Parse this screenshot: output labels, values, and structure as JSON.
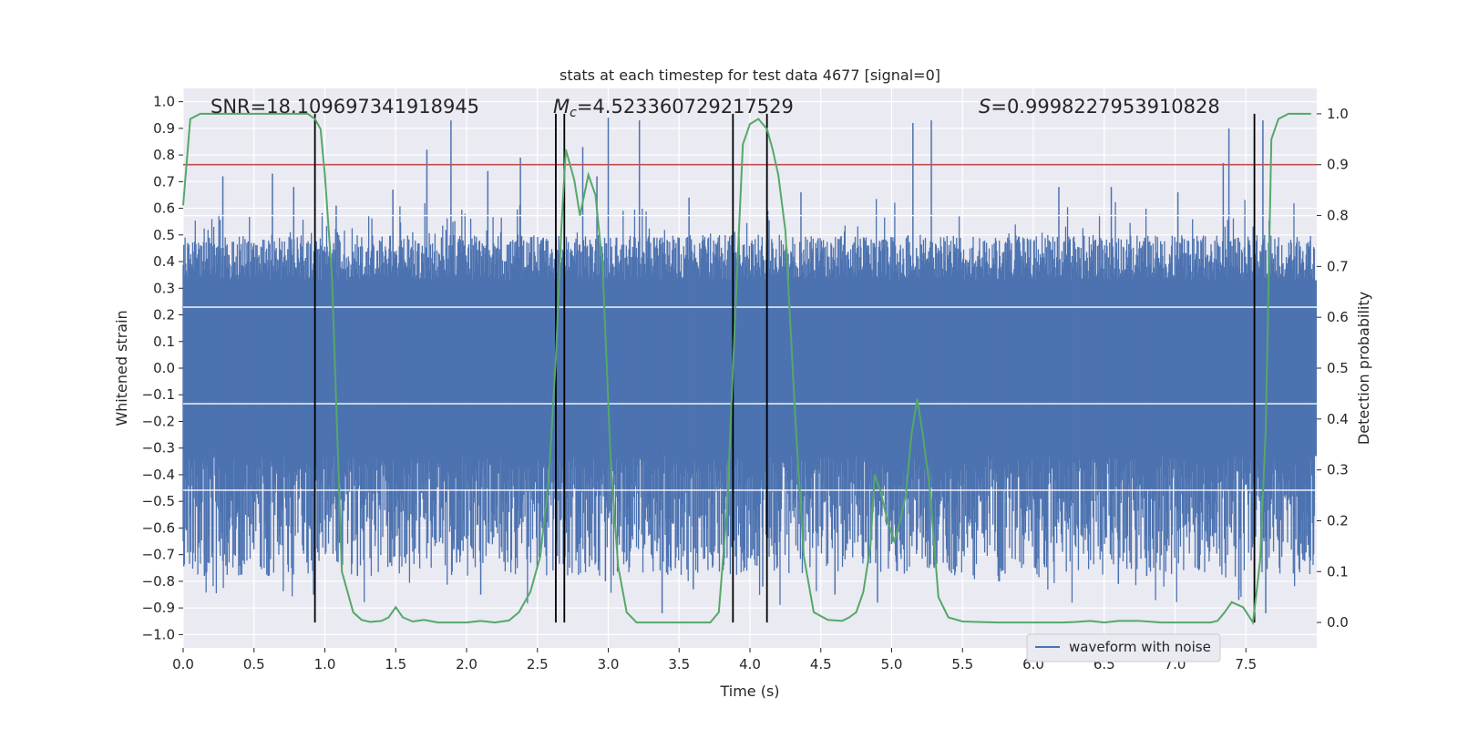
{
  "chart_data": {
    "type": "line",
    "title": "stats at each timestep for test data 4677 [signal=0]",
    "xlabel": "Time (s)",
    "ylabel_left": "Whitened strain",
    "ylabel_right": "Detection probability",
    "xlim": [
      0.0,
      8.0
    ],
    "ylim_left": [
      -1.05,
      1.05
    ],
    "ylim_right": [
      -0.05,
      1.05
    ],
    "xticks": [
      "0.0",
      "0.5",
      "1.0",
      "1.5",
      "2.0",
      "2.5",
      "3.0",
      "3.5",
      "4.0",
      "4.5",
      "5.0",
      "5.5",
      "6.0",
      "6.5",
      "7.0",
      "7.5"
    ],
    "yticks_left": [
      "-1.0",
      "-0.9",
      "-0.8",
      "-0.7",
      "-0.6",
      "-0.5",
      "-0.4",
      "-0.3",
      "-0.2",
      "-0.1",
      "0.0",
      "0.1",
      "0.2",
      "0.3",
      "0.4",
      "0.5",
      "0.6",
      "0.7",
      "0.8",
      "0.9",
      "1.0"
    ],
    "yticks_right": [
      "0.0",
      "0.1",
      "0.2",
      "0.3",
      "0.4",
      "0.5",
      "0.6",
      "0.7",
      "0.8",
      "0.9",
      "1.0"
    ],
    "grid": true,
    "legend_position": "lower right",
    "legend": [
      "waveform with noise"
    ],
    "annotations": {
      "snr": "SNR=18.109697341918945",
      "mc_sym": "M",
      "mc_sub": "c",
      "mc_val": "=4.523360729217529",
      "s_sym": "S",
      "s_val": "=0.9998227953910828"
    },
    "colors": {
      "waveform": "#4c72b0",
      "probability": "#55a868",
      "threshold": "#c44e52",
      "markers": "#000000",
      "axes_bg": "#eaeaf2",
      "grid": "#ffffff"
    },
    "series": [
      {
        "name": "waveform with noise",
        "axis": "left",
        "color": "#4c72b0",
        "envelope": {
          "core_range": [
            -0.33,
            0.33
          ],
          "typical_upper": 0.5,
          "typical_lower": -0.45,
          "spike_max": [
            [
              0.28,
              0.72
            ],
            [
              0.63,
              0.73
            ],
            [
              0.78,
              0.68
            ],
            [
              1.08,
              0.61
            ],
            [
              1.48,
              0.67
            ],
            [
              1.72,
              0.82
            ],
            [
              1.89,
              0.93
            ],
            [
              2.15,
              0.74
            ],
            [
              2.38,
              0.79
            ],
            [
              2.82,
              0.83
            ],
            [
              2.92,
              0.72
            ],
            [
              3.0,
              0.94
            ],
            [
              3.22,
              0.93
            ],
            [
              3.57,
              0.64
            ],
            [
              4.12,
              0.73
            ],
            [
              4.36,
              0.66
            ],
            [
              5.15,
              0.92
            ],
            [
              5.28,
              0.93
            ],
            [
              6.18,
              0.68
            ],
            [
              6.55,
              0.68
            ],
            [
              7.02,
              0.66
            ],
            [
              7.34,
              0.77
            ],
            [
              7.38,
              0.9
            ],
            [
              7.62,
              0.93
            ]
          ],
          "spike_min": [
            [
              0.15,
              -0.78
            ],
            [
              0.36,
              -0.7
            ],
            [
              0.6,
              -0.78
            ],
            [
              0.92,
              -0.85
            ],
            [
              1.23,
              -0.78
            ],
            [
              1.93,
              -0.73
            ],
            [
              2.1,
              -0.85
            ],
            [
              2.78,
              -0.68
            ],
            [
              2.98,
              -0.8
            ],
            [
              3.38,
              -0.92
            ],
            [
              3.6,
              -0.83
            ],
            [
              4.09,
              -0.82
            ],
            [
              4.6,
              -0.85
            ],
            [
              4.9,
              -0.88
            ],
            [
              5.3,
              -0.75
            ],
            [
              5.76,
              -0.8
            ],
            [
              6.6,
              -0.81
            ],
            [
              6.8,
              -0.78
            ],
            [
              7.45,
              -0.87
            ],
            [
              7.64,
              -0.92
            ]
          ]
        }
      },
      {
        "name": "detection probability",
        "axis": "right",
        "color": "#55a868",
        "x": [
          0.0,
          0.05,
          0.12,
          0.2,
          0.3,
          0.4,
          0.5,
          0.6,
          0.7,
          0.8,
          0.88,
          0.93,
          0.97,
          1.0,
          1.05,
          1.12,
          1.2,
          1.26,
          1.32,
          1.4,
          1.45,
          1.5,
          1.55,
          1.62,
          1.7,
          1.8,
          1.9,
          2.0,
          2.1,
          2.2,
          2.3,
          2.37,
          2.45,
          2.52,
          2.58,
          2.63,
          2.67,
          2.7,
          2.76,
          2.8,
          2.86,
          2.91,
          2.96,
          3.02,
          3.07,
          3.13,
          3.2,
          3.3,
          3.45,
          3.6,
          3.72,
          3.78,
          3.84,
          3.9,
          3.95,
          4.0,
          4.06,
          4.12,
          4.16,
          4.2,
          4.25,
          4.32,
          4.38,
          4.45,
          4.55,
          4.65,
          4.7,
          4.75,
          4.8,
          4.85,
          4.88,
          4.92,
          4.97,
          5.02,
          5.06,
          5.1,
          5.14,
          5.18,
          5.22,
          5.27,
          5.33,
          5.4,
          5.5,
          5.6,
          5.75,
          6.0,
          6.2,
          6.3,
          6.4,
          6.5,
          6.6,
          6.75,
          6.9,
          7.0,
          7.1,
          7.15,
          7.25,
          7.3,
          7.35,
          7.4,
          7.48,
          7.55,
          7.6,
          7.64,
          7.68,
          7.73,
          7.8,
          7.9,
          7.96
        ],
        "values": [
          0.82,
          0.99,
          1.0,
          1.0,
          1.0,
          1.0,
          1.0,
          1.0,
          1.0,
          1.0,
          1.0,
          0.99,
          0.97,
          0.88,
          0.68,
          0.1,
          0.02,
          0.005,
          0.001,
          0.003,
          0.01,
          0.03,
          0.01,
          0.002,
          0.005,
          0.0,
          0.0,
          0.0,
          0.003,
          0.0,
          0.004,
          0.02,
          0.06,
          0.13,
          0.28,
          0.52,
          0.78,
          0.93,
          0.87,
          0.8,
          0.88,
          0.84,
          0.7,
          0.3,
          0.11,
          0.02,
          0.0,
          0.0,
          0.0,
          0.0,
          0.0,
          0.02,
          0.23,
          0.63,
          0.94,
          0.98,
          0.99,
          0.97,
          0.93,
          0.88,
          0.77,
          0.4,
          0.13,
          0.02,
          0.005,
          0.003,
          0.01,
          0.02,
          0.06,
          0.15,
          0.29,
          0.26,
          0.2,
          0.16,
          0.2,
          0.25,
          0.37,
          0.44,
          0.37,
          0.26,
          0.05,
          0.01,
          0.002,
          0.001,
          0.0,
          0.0,
          0.0,
          0.001,
          0.003,
          0.0,
          0.003,
          0.003,
          0.0,
          0.0,
          0.0,
          0.0,
          0.0,
          0.003,
          0.02,
          0.04,
          0.03,
          0.0,
          0.12,
          0.38,
          0.95,
          0.99,
          1.0,
          1.0,
          1.0
        ]
      },
      {
        "name": "threshold",
        "axis": "right",
        "color": "#c44e52",
        "value": 0.9
      }
    ],
    "marker_lines_x": [
      0.93,
      2.63,
      2.69,
      3.88,
      4.12,
      7.56
    ],
    "bands_right": [
      0.26,
      0.43,
      0.62,
      0.8
    ]
  }
}
